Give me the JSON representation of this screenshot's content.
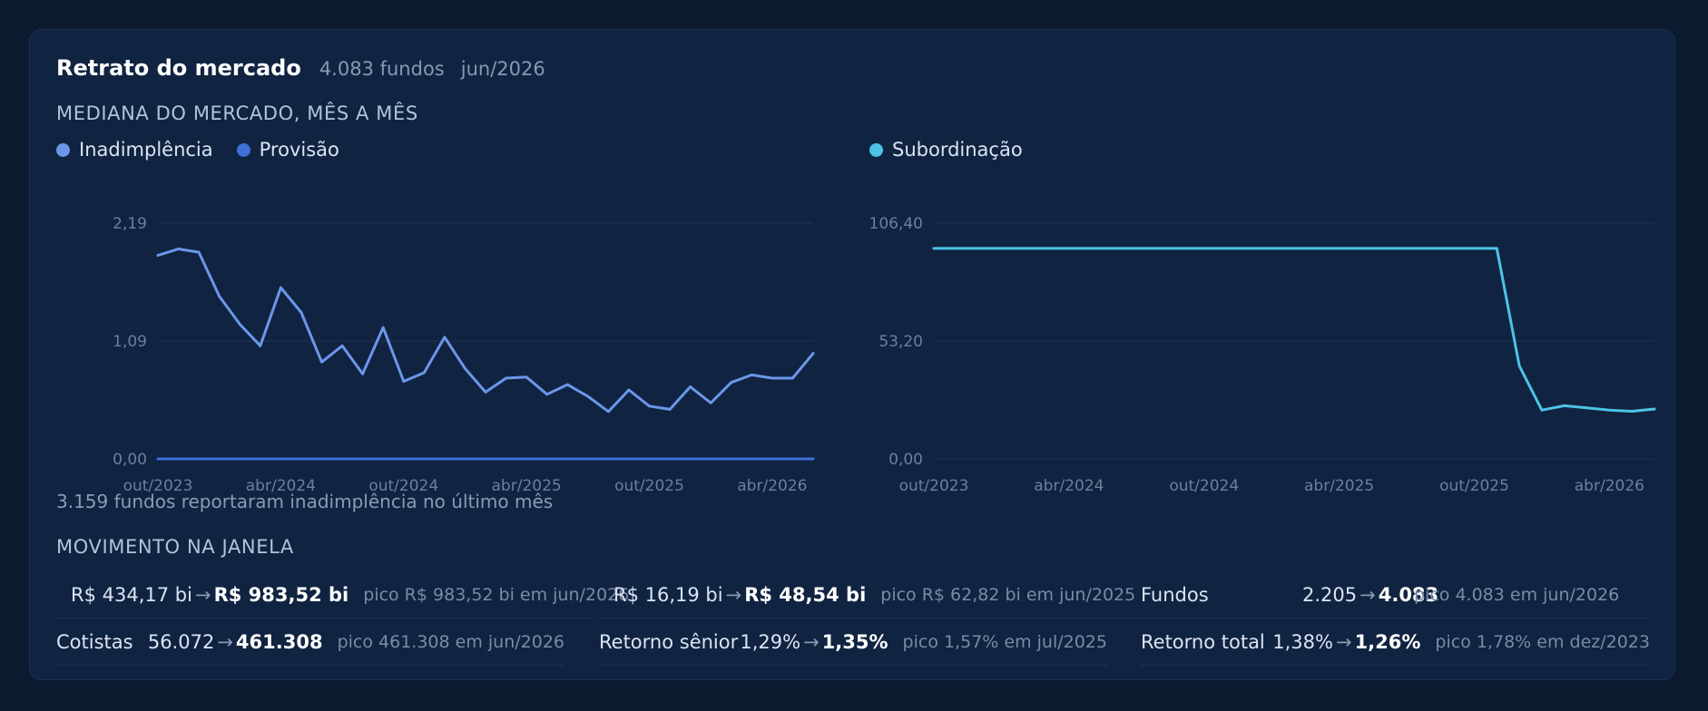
{
  "header": {
    "title": "Retrato do mercado",
    "funds": "4.083 fundos",
    "period": "jun/2026"
  },
  "section_median": "MEDIANA DO MERCADO, MÊS A MÊS",
  "legend_left": [
    {
      "label": "Inadimplência",
      "color": "#6b97ea"
    },
    {
      "label": "Provisão",
      "color": "#3f6fd8"
    }
  ],
  "legend_right": [
    {
      "label": "Subordinação",
      "color": "#4cc3e6"
    }
  ],
  "note": "3.159 fundos reportaram inadimplência no último mês",
  "section_movement": "MOVIMENTO NA JANELA",
  "movement": [
    {
      "label": "",
      "from": "R$ 434,17 bi",
      "to": "R$ 983,52 bi",
      "peak": "pico R$ 983,52 bi em jun/2026"
    },
    {
      "label": "",
      "from": "R$ 16,19 bi",
      "to": "R$ 48,54 bi",
      "peak": "pico R$ 62,82 bi em jun/2025"
    },
    {
      "label": "Fundos",
      "from": "2.205",
      "to": "4.083",
      "peak": "pico 4.083 em jun/2026"
    },
    {
      "label": "Cotistas",
      "from": "56.072",
      "to": "461.308",
      "peak": "pico 461.308 em jun/2026"
    },
    {
      "label": "Retorno sênior",
      "from": "1,29%",
      "to": "1,35%",
      "peak": "pico 1,57% em jul/2025"
    },
    {
      "label": "Retorno total",
      "from": "1,38%",
      "to": "1,26%",
      "peak": "pico 1,78% em dez/2023"
    }
  ],
  "chart_data": [
    {
      "type": "line",
      "x": [
        "out/2023",
        "nov/2023",
        "dez/2023",
        "jan/2024",
        "fev/2024",
        "mar/2024",
        "abr/2024",
        "mai/2024",
        "jun/2024",
        "jul/2024",
        "ago/2024",
        "set/2024",
        "out/2024",
        "nov/2024",
        "dez/2024",
        "jan/2025",
        "fev/2025",
        "mar/2025",
        "abr/2025",
        "mai/2025",
        "jun/2025",
        "jul/2025",
        "ago/2025",
        "set/2025",
        "out/2025",
        "nov/2025",
        "dez/2025",
        "jan/2026",
        "fev/2026",
        "mar/2026",
        "abr/2026",
        "mai/2026",
        "jun/2026"
      ],
      "x_tick_labels": [
        "out/2023",
        "abr/2024",
        "out/2024",
        "abr/2025",
        "out/2025",
        "abr/2026"
      ],
      "y_tick_labels": [
        "0,00",
        "1,09",
        "2,19"
      ],
      "ylim": [
        0,
        2.19
      ],
      "grid": true,
      "series": [
        {
          "name": "Inadimplência",
          "color": "#6b97ea",
          "values": [
            1.89,
            1.95,
            1.92,
            1.51,
            1.25,
            1.05,
            1.59,
            1.36,
            0.9,
            1.05,
            0.79,
            1.22,
            0.72,
            0.8,
            1.13,
            0.84,
            0.62,
            0.75,
            0.76,
            0.6,
            0.69,
            0.58,
            0.44,
            0.64,
            0.49,
            0.46,
            0.67,
            0.52,
            0.71,
            0.78,
            0.75,
            0.75,
            0.98
          ]
        },
        {
          "name": "Provisão",
          "color": "#3f6fd8",
          "values": [
            0,
            0,
            0,
            0,
            0,
            0,
            0,
            0,
            0,
            0,
            0,
            0,
            0,
            0,
            0,
            0,
            0,
            0,
            0,
            0,
            0,
            0,
            0,
            0,
            0,
            0,
            0,
            0,
            0,
            0,
            0,
            0,
            0
          ]
        }
      ]
    },
    {
      "type": "line",
      "x": [
        "out/2023",
        "nov/2023",
        "dez/2023",
        "jan/2024",
        "fev/2024",
        "mar/2024",
        "abr/2024",
        "mai/2024",
        "jun/2024",
        "jul/2024",
        "ago/2024",
        "set/2024",
        "out/2024",
        "nov/2024",
        "dez/2024",
        "jan/2025",
        "fev/2025",
        "mar/2025",
        "abr/2025",
        "mai/2025",
        "jun/2025",
        "jul/2025",
        "ago/2025",
        "set/2025",
        "out/2025",
        "nov/2025",
        "dez/2025",
        "jan/2026",
        "fev/2026",
        "mar/2026",
        "abr/2026",
        "mai/2026",
        "jun/2026"
      ],
      "x_tick_labels": [
        "out/2023",
        "abr/2024",
        "out/2024",
        "abr/2025",
        "out/2025",
        "abr/2026"
      ],
      "y_tick_labels": [
        "0,00",
        "53,20",
        "106,40"
      ],
      "ylim": [
        0,
        106.4
      ],
      "grid": true,
      "series": [
        {
          "name": "Subordinação",
          "color": "#4cc3e6",
          "values": [
            95,
            95,
            95,
            95,
            95,
            95,
            95,
            95,
            95,
            95,
            95,
            95,
            95,
            95,
            95,
            95,
            95,
            95,
            95,
            95,
            95,
            95,
            95,
            95,
            95,
            95,
            42,
            22,
            24,
            23,
            22,
            21.5,
            22.5
          ]
        }
      ]
    }
  ]
}
